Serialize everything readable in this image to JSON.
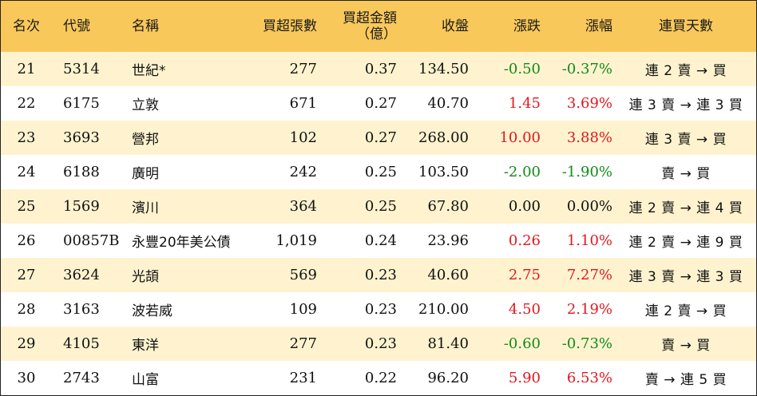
{
  "colors": {
    "header_bg": "#f9c85a",
    "odd_row_bg": "#fff3cf",
    "even_row_bg": "#ffffff",
    "up": "#e0191f",
    "down": "#148a1a"
  },
  "headers": {
    "rank": "名次",
    "code": "代號",
    "name": "名稱",
    "net_buy_lots": "買超張數",
    "net_buy_amount_line1": "買超金額",
    "net_buy_amount_line2": "（億）",
    "close": "收盤",
    "change": "漲跌",
    "change_pct": "漲幅",
    "streak": "連買天數"
  },
  "rows": [
    {
      "rank": "21",
      "code": "5314",
      "name": "世紀*",
      "lots": "277",
      "amount": "0.37",
      "close": "134.50",
      "change": "-0.50",
      "pct": "-0.37%",
      "dir": "neg",
      "streak": "連 2 賣 → 買"
    },
    {
      "rank": "22",
      "code": "6175",
      "name": "立敦",
      "lots": "671",
      "amount": "0.27",
      "close": "40.70",
      "change": "1.45",
      "pct": "3.69%",
      "dir": "pos",
      "streak": "連 3 賣 → 連 3 買"
    },
    {
      "rank": "23",
      "code": "3693",
      "name": "營邦",
      "lots": "102",
      "amount": "0.27",
      "close": "268.00",
      "change": "10.00",
      "pct": "3.88%",
      "dir": "pos",
      "streak": "連 3 賣 → 買"
    },
    {
      "rank": "24",
      "code": "6188",
      "name": "廣明",
      "lots": "242",
      "amount": "0.25",
      "close": "103.50",
      "change": "-2.00",
      "pct": "-1.90%",
      "dir": "neg",
      "streak": "賣 → 買"
    },
    {
      "rank": "25",
      "code": "1569",
      "name": "濱川",
      "lots": "364",
      "amount": "0.25",
      "close": "67.80",
      "change": "0.00",
      "pct": "0.00%",
      "dir": "zero",
      "streak": "連 2 賣 → 連 4 買"
    },
    {
      "rank": "26",
      "code": "00857B",
      "name": "永豐20年美公債",
      "lots": "1,019",
      "amount": "0.24",
      "close": "23.96",
      "change": "0.26",
      "pct": "1.10%",
      "dir": "pos",
      "streak": "連 2 賣 → 連 9 買"
    },
    {
      "rank": "27",
      "code": "3624",
      "name": "光頡",
      "lots": "569",
      "amount": "0.23",
      "close": "40.60",
      "change": "2.75",
      "pct": "7.27%",
      "dir": "pos",
      "streak": "連 3 賣 → 連 3 買"
    },
    {
      "rank": "28",
      "code": "3163",
      "name": "波若威",
      "lots": "109",
      "amount": "0.23",
      "close": "210.00",
      "change": "4.50",
      "pct": "2.19%",
      "dir": "pos",
      "streak": "連 2 賣 → 買"
    },
    {
      "rank": "29",
      "code": "4105",
      "name": "東洋",
      "lots": "277",
      "amount": "0.23",
      "close": "81.40",
      "change": "-0.60",
      "pct": "-0.73%",
      "dir": "neg",
      "streak": "賣 → 買"
    },
    {
      "rank": "30",
      "code": "2743",
      "name": "山富",
      "lots": "231",
      "amount": "0.22",
      "close": "96.20",
      "change": "5.90",
      "pct": "6.53%",
      "dir": "pos",
      "streak": "賣 → 連 5 買"
    }
  ]
}
